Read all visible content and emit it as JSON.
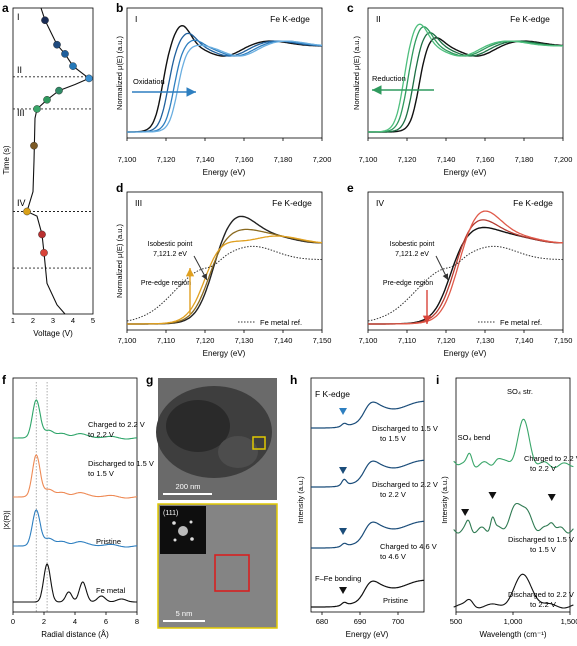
{
  "colors": {
    "ox_blue": "#2e7fc0",
    "green": "#2f9a5e",
    "orange": "#e0a020",
    "red": "#d8443a",
    "dark": "#1c1c1c",
    "navy": "#1b4d7a",
    "hrtem_frame": "#e0c800",
    "red_box": "#d62020"
  },
  "panel_a": {
    "letter": "a",
    "region_labels": [
      "I",
      "II",
      "III",
      "IV"
    ],
    "xlabel": "Voltage (V)",
    "ylabel": "Time (s)",
    "xticks": [
      "1",
      "2",
      "3",
      "4",
      "5"
    ]
  },
  "panel_b": {
    "letter": "b",
    "roman": "I",
    "edge": "Fe K-edge",
    "arrow_label": "Oxidation",
    "xlabel": "Energy (eV)",
    "ylabel": "Normalized μ(E) (a.u.)",
    "xticks": [
      "7,100",
      "7,120",
      "7,140",
      "7,160",
      "7,180",
      "7,200"
    ]
  },
  "panel_c": {
    "letter": "c",
    "roman": "II",
    "edge": "Fe K-edge",
    "arrow_label": "Reduction",
    "xlabel": "Energy (eV)",
    "ylabel": "Normalized μ(E) (a.u.)",
    "xticks": [
      "7,100",
      "7,120",
      "7,140",
      "7,160",
      "7,180",
      "7,200"
    ]
  },
  "panel_d": {
    "letter": "d",
    "roman": "III",
    "edge": "Fe K-edge",
    "isosbestic": "Isobestic point",
    "iso_value": "7,121.2 eV",
    "pre_edge": "Pre-edge region",
    "ref_label": "Fe metal ref.",
    "xlabel": "Energy (eV)",
    "ylabel": "Normalized μ(E) (a.u.)",
    "xticks": [
      "7,100",
      "7,110",
      "7,120",
      "7,130",
      "7,140",
      "7,150"
    ]
  },
  "panel_e": {
    "letter": "e",
    "roman": "IV",
    "edge": "Fe K-edge",
    "isosbestic": "Isobestic point",
    "iso_value": "7,121.2 eV",
    "pre_edge": "Pre-edge region",
    "ref_label": "Fe metal ref.",
    "xlabel": "Energy (eV)",
    "xticks": [
      "7,100",
      "7,110",
      "7,120",
      "7,130",
      "7,140",
      "7,150"
    ]
  },
  "panel_f": {
    "letter": "f",
    "labels": [
      "Charged to 2.2 V",
      "Discharged to 1.5 V",
      "Pristine",
      "Fe metal"
    ],
    "xlabel": "Radial distance (Å)",
    "ylabel": "|X(R)|",
    "xticks": [
      "0",
      "2",
      "4",
      "6",
      "8"
    ]
  },
  "panel_g": {
    "letter": "g",
    "scale_top": "200 nm",
    "scale_bottom": "5 nm",
    "fft_label": "(111)"
  },
  "panel_h": {
    "letter": "h",
    "edge": "F K-edge",
    "labels": [
      "Discharged to 1.5 V",
      "Discharged to 2.2 V",
      "Charged to 4.6 V",
      "Pristine"
    ],
    "bonding": "F–Fe bonding",
    "xlabel": "Energy (eV)",
    "ylabel": "Intensity (a.u.)",
    "xticks": [
      "680",
      "690",
      "700"
    ]
  },
  "panel_i": {
    "letter": "i",
    "so4_str": "SO₄ str.",
    "so4_bend": "SO₄ bend",
    "labels": [
      "Charged to 2.2 V",
      "Discharged to 1.5 V",
      "Discharged to 2.2 V"
    ],
    "xlabel": "Wavelength (cm⁻¹)",
    "ylabel": "Intensity (a.u.)",
    "xticks": [
      "500",
      "1,000",
      "1,500"
    ]
  },
  "chart_data": [
    {
      "type": "line",
      "panel": "a",
      "xlabel": "Voltage (V)",
      "ylabel": "Time (s)",
      "xlim": [
        1,
        5
      ],
      "voltage_trace": [
        [
          2.4,
          0.0
        ],
        [
          2.6,
          0.04
        ],
        [
          2.9,
          0.08
        ],
        [
          3.2,
          0.12
        ],
        [
          3.6,
          0.15
        ],
        [
          4.0,
          0.19
        ],
        [
          4.4,
          0.21
        ],
        [
          4.8,
          0.23
        ],
        [
          4.1,
          0.25
        ],
        [
          3.3,
          0.27
        ],
        [
          2.7,
          0.3
        ],
        [
          2.2,
          0.33
        ],
        [
          2.1,
          0.36
        ],
        [
          2.05,
          0.5
        ],
        [
          2.0,
          0.6
        ],
        [
          1.7,
          0.665
        ],
        [
          2.2,
          0.68
        ],
        [
          2.45,
          0.74
        ],
        [
          2.55,
          0.8
        ],
        [
          2.7,
          0.9
        ],
        [
          3.2,
          0.97
        ],
        [
          3.6,
          1.0
        ]
      ],
      "markers": [
        [
          2.6,
          0.04
        ],
        [
          3.2,
          0.12
        ],
        [
          3.6,
          0.15
        ],
        [
          4.0,
          0.19
        ],
        [
          4.8,
          0.23
        ],
        [
          3.3,
          0.27
        ],
        [
          2.7,
          0.3
        ],
        [
          2.2,
          0.33
        ],
        [
          2.05,
          0.45
        ],
        [
          1.7,
          0.665
        ],
        [
          2.45,
          0.74
        ],
        [
          2.55,
          0.8
        ]
      ],
      "region_boundaries": [
        0.225,
        0.33,
        0.665,
        0.85
      ]
    },
    {
      "type": "line",
      "panel": "b",
      "xlabel": "Energy (eV)",
      "ylabel": "Normalized μ(E) (a.u.)",
      "xlim": [
        7100,
        7200
      ],
      "ylim": [
        0,
        1.3
      ],
      "series": [
        {
          "edge": 7118,
          "peak": 7128,
          "peak_height": 1.25
        },
        {
          "edge": 7121,
          "peak": 7131,
          "peak_height": 1.16
        },
        {
          "edge": 7124,
          "peak": 7134,
          "peak_height": 1.08
        },
        {
          "edge": 7126,
          "peak": 7136,
          "peak_height": 1.02
        }
      ]
    },
    {
      "type": "line",
      "panel": "c",
      "xlabel": "Energy (eV)",
      "ylabel": "Normalized μ(E) (a.u.)",
      "xlim": [
        7100,
        7200
      ],
      "ylim": [
        0,
        1.3
      ],
      "series": [
        {
          "edge": 7126,
          "peak": 7134,
          "peak_height": 1.12
        },
        {
          "edge": 7123,
          "peak": 7131,
          "peak_height": 1.18
        },
        {
          "edge": 7120,
          "peak": 7128,
          "peak_height": 1.25
        },
        {
          "edge": 7118,
          "peak": 7126,
          "peak_height": 1.28
        }
      ]
    },
    {
      "type": "line",
      "panel": "d",
      "xlabel": "Energy (eV)",
      "ylabel": "Normalized μ(E) (a.u.)",
      "xlim": [
        7100,
        7150
      ],
      "annotations": {
        "isosbestic_eV": 7121.2,
        "pre_edge_eV": 7116
      },
      "series": [
        {
          "edge": 7122,
          "peak": 7128,
          "peak_height": 1.22
        },
        {
          "edge": 7121,
          "peak": 7129,
          "peak_height": 1.05
        },
        {
          "edge": 7120,
          "peak": 7130,
          "peak_height": 0.92
        },
        {
          "name": "Fe metal ref.",
          "edge": 7112,
          "peak": 7132,
          "peak_height": 0.78
        }
      ]
    },
    {
      "type": "line",
      "panel": "e",
      "xlabel": "Energy (eV)",
      "xlim": [
        7100,
        7150
      ],
      "annotations": {
        "isosbestic_eV": 7121.2,
        "pre_edge_eV": 7116
      },
      "series": [
        {
          "edge": 7121,
          "peak": 7128,
          "peak_height": 1.08
        },
        {
          "edge": 7122,
          "peak": 7128,
          "peak_height": 1.18
        },
        {
          "edge": 7123,
          "peak": 7129,
          "peak_height": 1.28
        },
        {
          "name": "Fe metal ref.",
          "edge": 7112,
          "peak": 7132,
          "peak_height": 0.78
        }
      ]
    },
    {
      "type": "line",
      "panel": "f",
      "xlabel": "Radial distance (Å)",
      "ylabel": "|X(R)|",
      "xlim": [
        0,
        8
      ],
      "series": [
        {
          "name": "Charged to 2.2 V",
          "main_peak_A": 1.5
        },
        {
          "name": "Discharged to 1.5 V",
          "main_peak_A": 1.5
        },
        {
          "name": "Pristine",
          "main_peak_A": 1.5
        },
        {
          "name": "Fe metal",
          "main_peak_A": 2.2,
          "extra_peaks_A": [
            3.6,
            4.5
          ]
        }
      ],
      "reference_lines_A": [
        1.5,
        2.2
      ]
    },
    {
      "type": "line",
      "panel": "h",
      "xlabel": "Energy (eV)",
      "ylabel": "Intensity (a.u.)",
      "xlim": [
        675,
        705
      ],
      "series": [
        {
          "name": "Discharged to 1.5 V"
        },
        {
          "name": "Discharged to 2.2 V"
        },
        {
          "name": "Charged to 4.6 V"
        },
        {
          "name": "Pristine"
        }
      ],
      "marker_eV": 683.5
    },
    {
      "type": "line",
      "panel": "i",
      "xlabel": "Wavelength (cm⁻¹)",
      "ylabel": "Intensity (a.u.)",
      "xlim": [
        500,
        1500
      ],
      "series": [
        {
          "name": "Charged to 2.2 V"
        },
        {
          "name": "Discharged to 1.5 V"
        },
        {
          "name": "Discharged to 2.2 V"
        }
      ],
      "marker_wavenumbers": [
        580,
        820,
        1340
      ]
    }
  ]
}
